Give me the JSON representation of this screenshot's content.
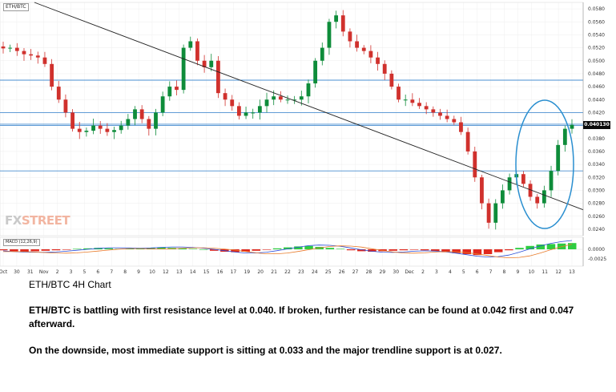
{
  "chart_data": {
    "type": "candlestick",
    "symbol": "ETH/BTC",
    "macd_label": "MACD (12,26,9)",
    "last_price": "0.040130",
    "y_ticks": [
      "0.0580",
      "0.0560",
      "0.0540",
      "0.0520",
      "0.0500",
      "0.0480",
      "0.0460",
      "0.0440",
      "0.0420",
      "0.0400",
      "0.0380",
      "0.0360",
      "0.0340",
      "0.0320",
      "0.0300",
      "0.0280",
      "0.0260",
      "0.0240"
    ],
    "y_range": [
      0.023,
      0.059
    ],
    "macd_ticks": [
      "0.0000",
      "-0.0025"
    ],
    "x_ticks": [
      "Oct",
      "30",
      "31",
      "Nov",
      "2",
      "3",
      "5",
      "6",
      "7",
      "8",
      "9",
      "10",
      "12",
      "13",
      "14",
      "15",
      "16",
      "17",
      "19",
      "20",
      "21",
      "22",
      "23",
      "24",
      "25",
      "26",
      "27",
      "28",
      "29",
      "30",
      "Dec",
      "2",
      "3",
      "4",
      "5",
      "6",
      "7",
      "8",
      "9",
      "10",
      "11",
      "12",
      "13"
    ],
    "horizontal_levels": [
      0.047,
      0.042,
      0.0402,
      0.04,
      0.033
    ],
    "trendline": [
      [
        0.0589,
        0.059
      ],
      [
        1.0,
        0.027
      ]
    ],
    "closes": [
      0.0519,
      0.052,
      0.0515,
      0.051,
      0.0508,
      0.0505,
      0.0495,
      0.046,
      0.044,
      0.042,
      0.0395,
      0.039,
      0.0392,
      0.04,
      0.0395,
      0.039,
      0.0393,
      0.04,
      0.041,
      0.0425,
      0.041,
      0.0395,
      0.042,
      0.0445,
      0.046,
      0.0455,
      0.052,
      0.053,
      0.05,
      0.049,
      0.05,
      0.045,
      0.044,
      0.043,
      0.0415,
      0.042,
      0.042,
      0.043,
      0.044,
      0.0445,
      0.044,
      0.044,
      0.044,
      0.0445,
      0.0465,
      0.05,
      0.052,
      0.056,
      0.057,
      0.0545,
      0.053,
      0.052,
      0.0515,
      0.0505,
      0.0495,
      0.048,
      0.046,
      0.044,
      0.044,
      0.0435,
      0.043,
      0.0425,
      0.042,
      0.0415,
      0.041,
      0.0405,
      0.039,
      0.036,
      0.032,
      0.028,
      0.025,
      0.028,
      0.03,
      0.032,
      0.0325,
      0.031,
      0.029,
      0.028,
      0.03,
      0.033,
      0.037,
      0.0395,
      0.0401
    ],
    "macd_histogram": [
      -0.0002,
      -0.0004,
      -0.0005,
      -0.0004,
      -0.0003,
      -0.0002,
      -0.0001,
      0.0001,
      0.0002,
      0.0003,
      0.0002,
      0.0001,
      0.0001,
      0.0002,
      0.0003,
      0.0004,
      0.0003,
      0.0002,
      0.0001,
      0.0,
      -0.0003,
      -0.0005,
      -0.0006,
      -0.0005,
      -0.0003,
      -0.0001,
      0.0002,
      0.0004,
      0.0006,
      0.0007,
      0.0005,
      0.0003,
      0.0001,
      -0.0002,
      -0.0004,
      -0.0005,
      -0.0004,
      -0.0003,
      -0.0002,
      -0.0001,
      -0.0002,
      -0.0004,
      -0.0006,
      -0.0008,
      -0.001,
      -0.0012,
      -0.001,
      -0.0006,
      -0.0002,
      0.0003,
      0.0007,
      0.001,
      0.0011,
      0.0012,
      0.0013
    ],
    "annotations": []
  },
  "article": {
    "title": "ETH/BTC 4H Chart",
    "para1": "ETH/BTC is battling with first resistance level at 0.040. If broken, further resistance can be found at 0.042 first and 0.047 afterward.",
    "para2": "On the downside, most immediate support is sitting at 0.033 and the major trendline support is at 0.027."
  },
  "logo": {
    "part1": "FX",
    "part2": "STREET"
  },
  "colors": {
    "up": "#0e8c3a",
    "down": "#d0312d",
    "level": "#4a8fd0",
    "ellipse": "#2a8fd0",
    "macd_up": "#2ecc40",
    "macd_down": "#e0281e",
    "macd_line": "#2a4fd8",
    "signal_line": "#e87b2a"
  }
}
